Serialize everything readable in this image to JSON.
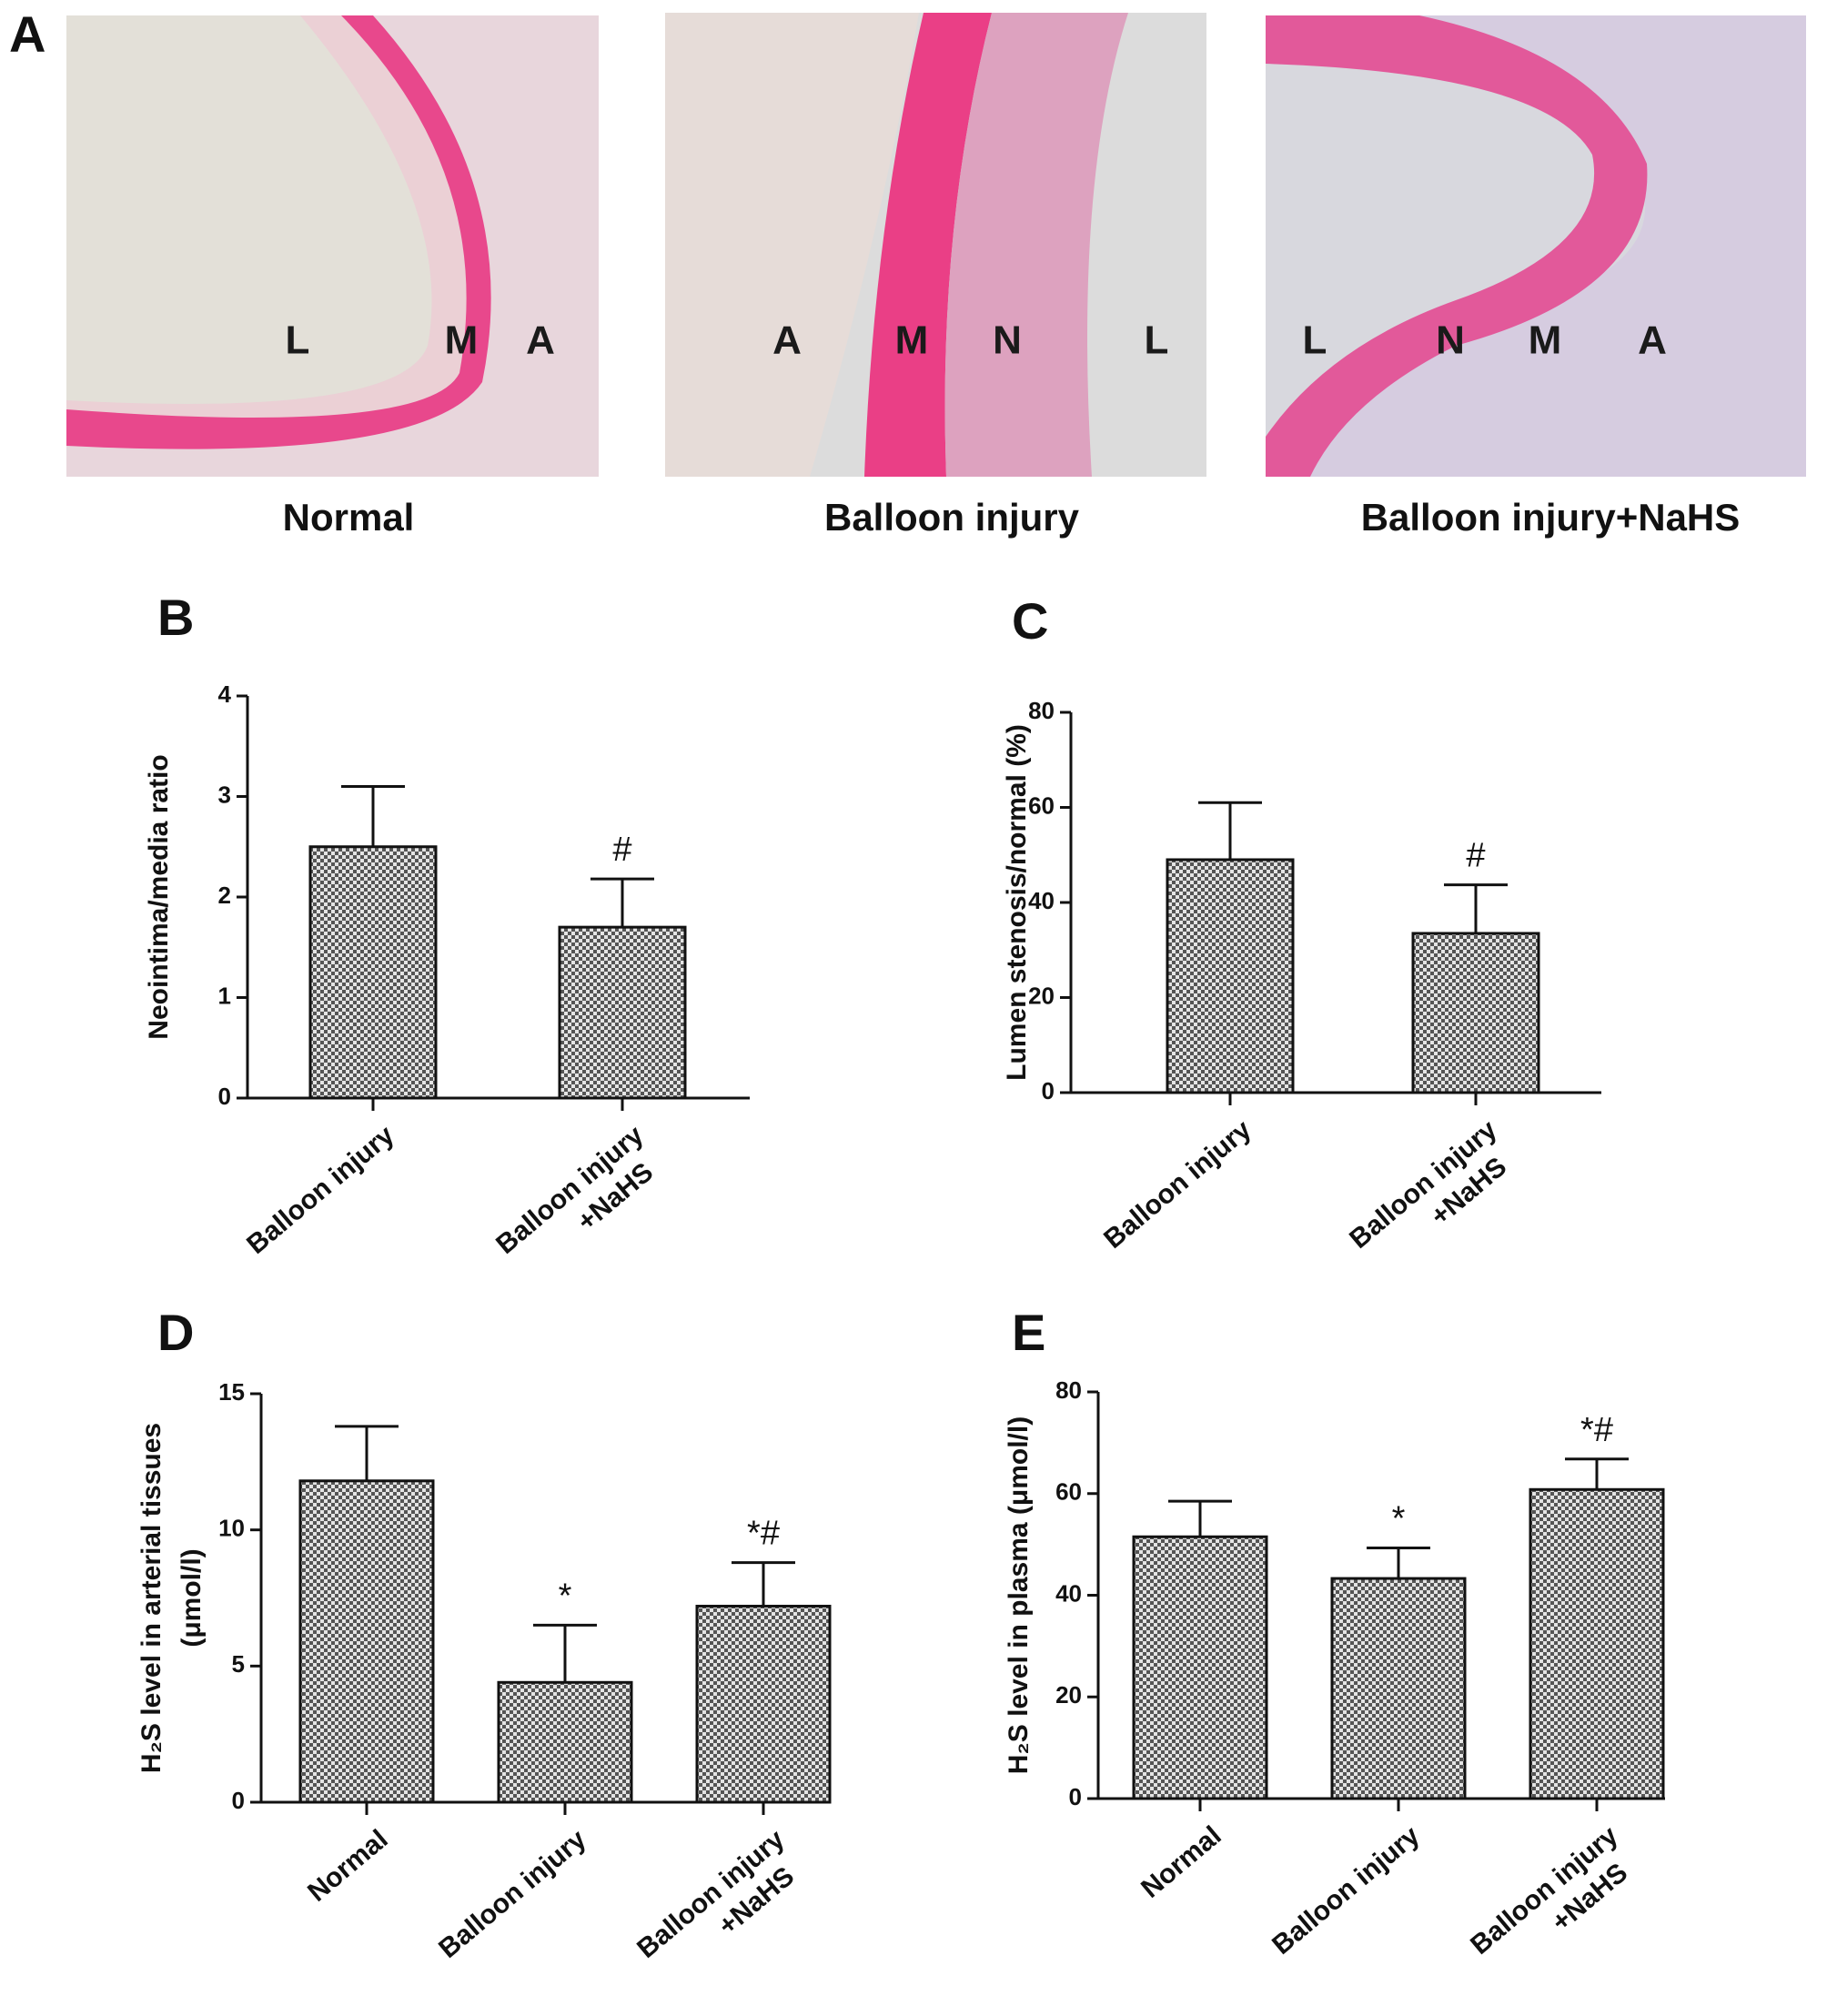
{
  "panel_a": {
    "label": "A",
    "images": [
      {
        "caption": "Normal",
        "letters": [
          "L",
          "M",
          "A"
        ]
      },
      {
        "caption": "Balloon injury",
        "letters": [
          "A",
          "M",
          "N",
          "L"
        ]
      },
      {
        "caption": "Balloon injury+NaHS",
        "letters": [
          "L",
          "N",
          "M",
          "A"
        ]
      }
    ]
  },
  "chart_data": [
    {
      "type": "bar",
      "panel": "B",
      "y_label": [
        "Neointima/media ratio"
      ],
      "categories": [
        [
          "Balloon injury"
        ],
        [
          "Balloon injury",
          "+NaHS"
        ]
      ],
      "values": [
        2.5,
        1.7
      ],
      "errors": [
        0.6,
        0.48
      ],
      "annotations": [
        null,
        "#"
      ],
      "ylim": [
        0,
        4
      ],
      "yticks": [
        0,
        1,
        2,
        3,
        4
      ]
    },
    {
      "type": "bar",
      "panel": "C",
      "y_label": [
        "Lumen stenosis/normal (%)"
      ],
      "categories": [
        [
          "Balloon injury"
        ],
        [
          "Balloon injury",
          "+NaHS"
        ]
      ],
      "values": [
        49,
        33.5
      ],
      "errors": [
        12,
        10.2
      ],
      "annotations": [
        null,
        "#"
      ],
      "ylim": [
        0,
        80
      ],
      "yticks": [
        0,
        20,
        40,
        60,
        80
      ]
    },
    {
      "type": "bar",
      "panel": "D",
      "y_label": [
        "H₂S level in arterial tissues",
        "(μmol/l)"
      ],
      "categories": [
        [
          "Normal"
        ],
        [
          "Balloon injury"
        ],
        [
          "Balloon injury",
          "+NaHS"
        ]
      ],
      "values": [
        11.8,
        4.4,
        7.2
      ],
      "errors": [
        2.0,
        2.1,
        1.6
      ],
      "annotations": [
        null,
        "*",
        "*#"
      ],
      "ylim": [
        0,
        15
      ],
      "yticks": [
        0,
        5,
        10,
        15
      ]
    },
    {
      "type": "bar",
      "panel": "E",
      "y_label": [
        "H₂S level in plasma (μmol/l)"
      ],
      "categories": [
        [
          "Normal"
        ],
        [
          "Balloon injury"
        ],
        [
          "Balloon injury",
          "+NaHS"
        ]
      ],
      "values": [
        51.5,
        43.3,
        60.8
      ],
      "errors": [
        7.0,
        6.0,
        6.0
      ],
      "annotations": [
        null,
        "*",
        "*#"
      ],
      "ylim": [
        0,
        80
      ],
      "yticks": [
        0,
        20,
        40,
        60,
        80
      ]
    }
  ]
}
